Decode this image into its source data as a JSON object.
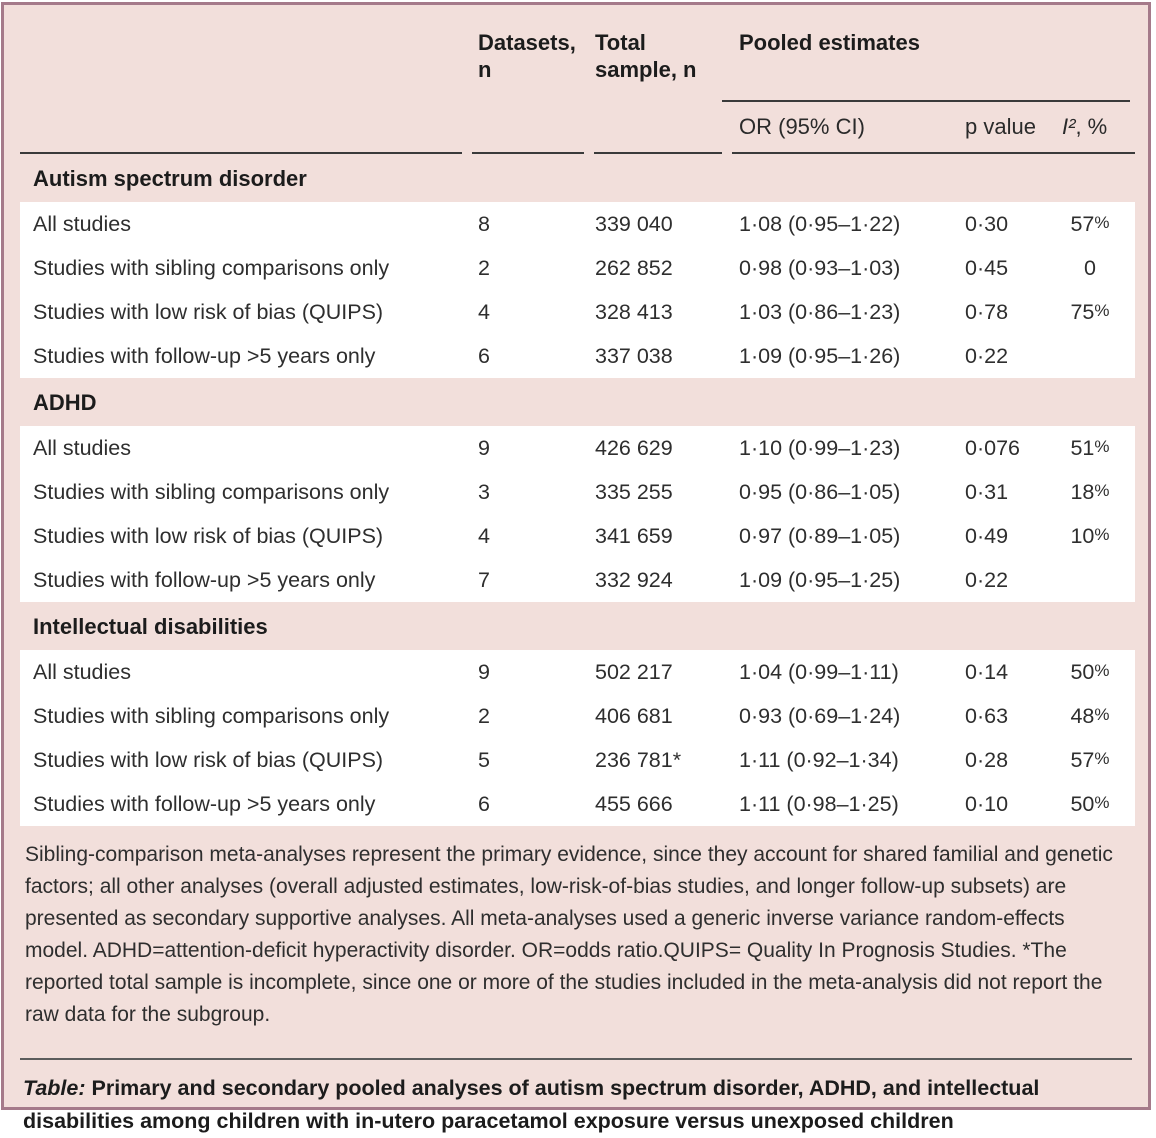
{
  "colors": {
    "panel_background": "#f2dfdb",
    "panel_border": "#a57a8a",
    "row_background": "#ffffff",
    "rule_dark": "#3a3a3a",
    "rule_gray": "#5c5c5c",
    "text": "#262626"
  },
  "table": {
    "columns": {
      "datasets": "Datasets, n",
      "total_sample": "Total sample, n",
      "pooled": "Pooled estimates",
      "or": "OR (95% CI)",
      "p": "p value",
      "i2_italic": "I²",
      "i2_rest": ", %"
    },
    "sections": [
      {
        "title": "Autism spectrum disorder",
        "rows": [
          {
            "label": "All studies",
            "datasets": "8",
            "total": "339 040",
            "or": "1·08 (0·95–1·22)",
            "p": "0·30",
            "i2": "57",
            "i2_pct": "%"
          },
          {
            "label": "Studies with sibling comparisons only",
            "datasets": "2",
            "total": "262 852",
            "or": "0·98 (0·93–1·03)",
            "p": "0·45",
            "i2": "0",
            "i2_pct": ""
          },
          {
            "label": "Studies with low risk of bias (QUIPS)",
            "datasets": "4",
            "total": "328 413",
            "or": "1·03 (0·86–1·23)",
            "p": "0·78",
            "i2": "75",
            "i2_pct": "%"
          },
          {
            "label": "Studies with follow-up >5 years only",
            "datasets": "6",
            "total": "337 038",
            "or": "1·09 (0·95–1·26)",
            "p": "0·22",
            "i2": "",
            "i2_pct": ""
          }
        ]
      },
      {
        "title": "ADHD",
        "rows": [
          {
            "label": "All studies",
            "datasets": "9",
            "total": "426 629",
            "or": "1·10 (0·99–1·23)",
            "p": "0·076",
            "i2": "51",
            "i2_pct": "%"
          },
          {
            "label": "Studies with sibling comparisons only",
            "datasets": "3",
            "total": "335 255",
            "or": "0·95 (0·86–1·05)",
            "p": "0·31",
            "i2": "18",
            "i2_pct": "%"
          },
          {
            "label": "Studies with low risk of bias (QUIPS)",
            "datasets": "4",
            "total": "341 659",
            "or": "0·97 (0·89–1·05)",
            "p": "0·49",
            "i2": "10",
            "i2_pct": "%"
          },
          {
            "label": "Studies with follow-up >5 years only",
            "datasets": "7",
            "total": "332 924",
            "or": "1·09 (0·95–1·25)",
            "p": "0·22",
            "i2": "",
            "i2_pct": ""
          }
        ]
      },
      {
        "title": "Intellectual disabilities",
        "rows": [
          {
            "label": "All studies",
            "datasets": "9",
            "total": "502 217",
            "or": "1·04 (0·99–1·11)",
            "p": "0·14",
            "i2": "50",
            "i2_pct": "%"
          },
          {
            "label": "Studies with sibling comparisons only",
            "datasets": "2",
            "total": "406 681",
            "or": "0·93 (0·69–1·24)",
            "p": "0·63",
            "i2": "48",
            "i2_pct": "%"
          },
          {
            "label": "Studies with low risk of bias (QUIPS)",
            "datasets": "5",
            "total": "236 781*",
            "or": "1·11 (0·92–1·34)",
            "p": "0·28",
            "i2": "57",
            "i2_pct": "%"
          },
          {
            "label": "Studies with follow-up >5 years only",
            "datasets": "6",
            "total": "455 666",
            "or": "1·11 (0·98–1·25)",
            "p": "0·10",
            "i2": "50",
            "i2_pct": "%"
          }
        ]
      }
    ],
    "footnote": "Sibling-comparison meta-analyses represent the primary evidence, since they account for shared familial and genetic factors; all other analyses (overall adjusted estimates, low-risk-of-bias studies, and longer follow-up subsets) are presented as secondary supportive analyses. All meta-analyses used a generic inverse variance random-effects model. ADHD=attention-deficit hyperactivity disorder. OR=odds ratio.QUIPS= Quality In Prognosis Studies. *The reported total sample is incomplete, since one or more of the studies included in the meta-analysis did not report the raw data for the subgroup.",
    "caption_label": "Table:",
    "caption_text": " Primary and secondary pooled analyses of autism spectrum disorder, ADHD, and intellectual disabilities among children with in-utero paracetamol exposure versus unexposed children"
  }
}
